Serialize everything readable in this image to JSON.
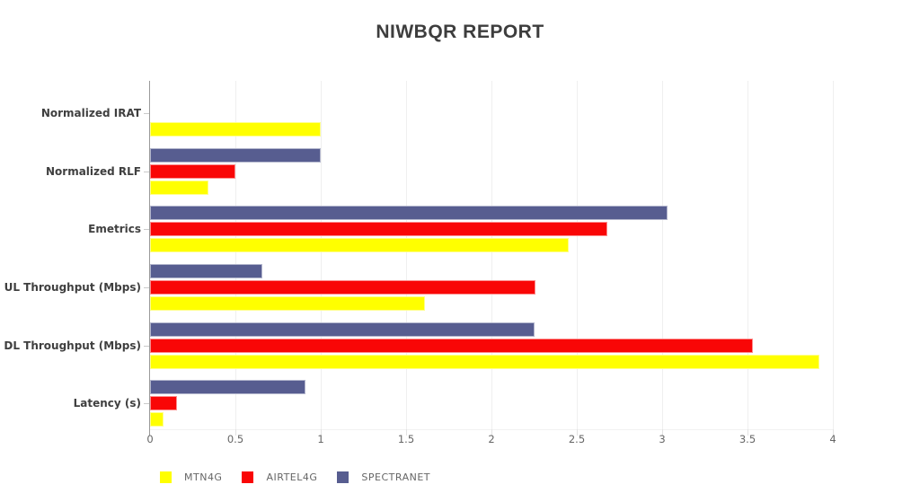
{
  "title": "NIWBQR REPORT",
  "chart_data": {
    "type": "bar",
    "orientation": "horizontal",
    "title": "NIWBQR REPORT",
    "categories": [
      "Normalized IRAT",
      "Normalized RLF",
      "Emetrics",
      "UL Throughput (Mbps)",
      "DL Throughput (Mbps)",
      "Latency (s)"
    ],
    "series": [
      {
        "name": "MTN4G",
        "color": "#ffff00",
        "values": [
          1.0,
          0.34,
          2.45,
          1.61,
          3.92,
          0.08
        ]
      },
      {
        "name": "AIRTEL4G",
        "color": "#f90606",
        "values": [
          0.0,
          0.5,
          2.68,
          2.26,
          3.53,
          0.16
        ]
      },
      {
        "name": "SPECTRANET",
        "color": "#575d90",
        "values": [
          0.0,
          1.0,
          3.03,
          0.66,
          2.25,
          0.91
        ]
      }
    ],
    "bar_order_top_to_bottom": [
      "SPECTRANET",
      "AIRTEL4G",
      "MTN4G"
    ],
    "xlabel": "",
    "ylabel": "",
    "xlim": [
      0,
      4
    ],
    "x_tick_labels": [
      "0",
      "0.5",
      "1",
      "1.5",
      "2",
      "2.5",
      "3",
      "3.5",
      "4"
    ],
    "grid": "vertical-only",
    "legend_position": "bottom-left"
  },
  "colors": {
    "background": "#ffffff",
    "title_text": "#3d3d3d",
    "category_text": "#3f3f3f",
    "tick_text": "#666666",
    "axis_line": "#9a9a9a",
    "gridline": "#efefef"
  }
}
